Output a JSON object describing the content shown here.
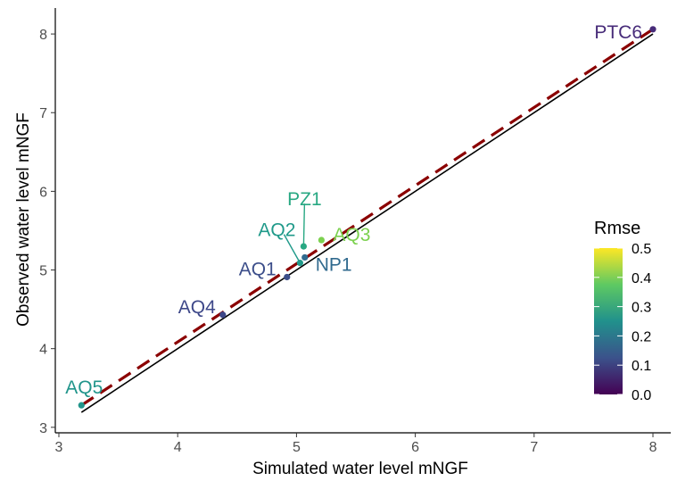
{
  "chart_data": {
    "type": "scatter",
    "xlabel": "Simulated water level mNGF",
    "ylabel": "Observed water level mNGF",
    "xlim": [
      2.97,
      8.15
    ],
    "ylim": [
      2.93,
      8.33
    ],
    "xticks": [
      "3",
      "4",
      "5",
      "6",
      "7",
      "8"
    ],
    "yticks": [
      "3",
      "4",
      "5",
      "6",
      "7",
      "8"
    ],
    "grid": false,
    "points": [
      {
        "label": "AQ5",
        "x": 3.19,
        "y": 3.28,
        "rmse": 0.26
      },
      {
        "label": "AQ4",
        "x": 4.38,
        "y": 4.43,
        "rmse": 0.11
      },
      {
        "label": "AQ1",
        "x": 4.92,
        "y": 4.91,
        "rmse": 0.12
      },
      {
        "label": "AQ2",
        "x": 5.03,
        "y": 5.09,
        "rmse": 0.27
      },
      {
        "label": "NP1",
        "x": 5.07,
        "y": 5.16,
        "rmse": 0.17
      },
      {
        "label": "PZ1",
        "x": 5.06,
        "y": 5.3,
        "rmse": 0.3
      },
      {
        "label": "AQ3",
        "x": 5.21,
        "y": 5.38,
        "rmse": 0.4
      },
      {
        "label": "PTC6",
        "x": 8.0,
        "y": 8.06,
        "rmse": 0.06
      }
    ],
    "reference_lines": [
      {
        "name": "identity",
        "style": "solid",
        "color": "#000000",
        "x": [
          3.19,
          8.0
        ],
        "y": [
          3.19,
          8.0
        ]
      },
      {
        "name": "regression",
        "style": "dashed",
        "color": "#8B0000",
        "x": [
          3.19,
          8.0
        ],
        "y": [
          3.28,
          8.06
        ]
      }
    ],
    "legend": {
      "title": "Rmse",
      "placement": "right",
      "ticks": [
        "0.0",
        "0.1",
        "0.2",
        "0.3",
        "0.4",
        "0.5"
      ],
      "range": [
        0,
        0.5
      ],
      "colormap": "viridis"
    }
  }
}
